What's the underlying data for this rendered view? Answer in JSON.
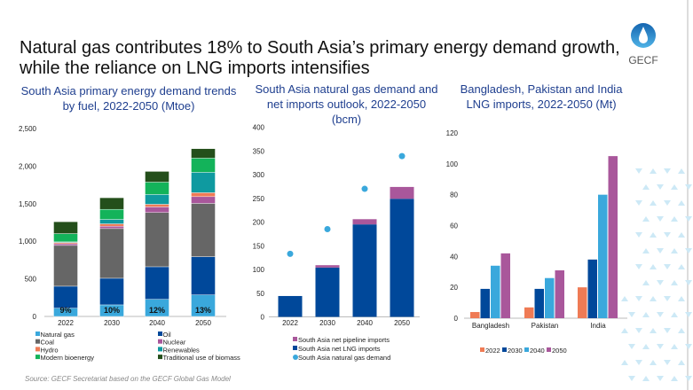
{
  "title": "Natural gas contributes 18% to South Asia’s primary energy demand growth, while the reliance on LNG imports intensifies",
  "logo": {
    "text": "GECF",
    "color": "#1e6fb8"
  },
  "source": "Source: GECF Secretariat based on the GECF Global Gas Model",
  "chart_data": [
    {
      "type": "bar",
      "stacked": true,
      "title": "South Asia primary energy demand trends by fuel, 2022-2050 (Mtoe)",
      "categories": [
        "2022",
        "2030",
        "2040",
        "2050"
      ],
      "ylim": [
        0,
        2500
      ],
      "yticks": [
        "0",
        "500",
        "1,000",
        "1,500",
        "2,000",
        "2,500"
      ],
      "ytick_values": [
        0,
        500,
        1000,
        1500,
        2000,
        2500
      ],
      "grid": false,
      "legend": "bottom",
      "data_labels": [
        "9%",
        "10%",
        "12%",
        "13%"
      ],
      "series": [
        {
          "name": "Natural gas",
          "color": "#3aa8dc",
          "values": [
            110,
            154,
            228,
            287
          ]
        },
        {
          "name": "Oil",
          "color": "#00489a",
          "values": [
            292,
            354,
            433,
            508
          ]
        },
        {
          "name": "Coal",
          "color": "#666666",
          "values": [
            543,
            661,
            721,
            709
          ]
        },
        {
          "name": "Nuclear",
          "color": "#a9579b",
          "values": [
            23,
            32,
            75,
            90
          ]
        },
        {
          "name": "Hydro",
          "color": "#ef7b55",
          "values": [
            16,
            31,
            35,
            52
          ]
        },
        {
          "name": "Renewables",
          "color": "#0f9aa0",
          "values": [
            8,
            59,
            130,
            271
          ]
        },
        {
          "name": "Modern bioenergy",
          "color": "#13b35a",
          "values": [
            110,
            134,
            165,
            189
          ]
        },
        {
          "name": "Traditional use of biomass",
          "color": "#244f1b",
          "values": [
            158,
            154,
            142,
            126
          ]
        }
      ]
    },
    {
      "type": "bar",
      "stacked": true,
      "title": "South Asia natural gas demand and net imports outlook, 2022-2050 (bcm)",
      "categories": [
        "2022",
        "2030",
        "2040",
        "2050"
      ],
      "ylim": [
        0,
        400
      ],
      "yticks": [
        "0",
        "50",
        "100",
        "150",
        "200",
        "250",
        "300",
        "350",
        "400"
      ],
      "ytick_values": [
        0,
        50,
        100,
        150,
        200,
        250,
        300,
        350,
        400
      ],
      "grid": false,
      "legend": "bottom",
      "series": [
        {
          "name": "South Asia net LNG imports",
          "color": "#00489a",
          "values": [
            44,
            104,
            195,
            249
          ]
        },
        {
          "name": "South Asia net pipeline imports",
          "color": "#a9579b",
          "values": [
            0,
            5,
            11,
            25
          ]
        }
      ],
      "markers": {
        "name": "South Asia natural gas demand",
        "color": "#3aa8dc",
        "values": [
          133,
          185,
          270,
          339
        ]
      },
      "legend_order": [
        "South Asia net pipeline imports",
        "South Asia net LNG imports",
        "South Asia natural gas demand"
      ]
    },
    {
      "type": "bar",
      "stacked": false,
      "title": "Bangladesh, Pakistan and India LNG imports, 2022-2050 (Mt)",
      "categories": [
        "Bangladesh",
        "Pakistan",
        "India"
      ],
      "ylim": [
        0,
        120
      ],
      "yticks": [
        "0",
        "20",
        "40",
        "60",
        "80",
        "100",
        "120"
      ],
      "ytick_values": [
        0,
        20,
        40,
        60,
        80,
        100,
        120
      ],
      "grid": false,
      "legend": "bottom",
      "series": [
        {
          "name": "2022",
          "color": "#ef7b55",
          "values": [
            4,
            7,
            20
          ]
        },
        {
          "name": "2030",
          "color": "#00489a",
          "values": [
            19,
            19,
            38
          ]
        },
        {
          "name": "2040",
          "color": "#3aa8dc",
          "values": [
            34,
            26,
            80
          ]
        },
        {
          "name": "2050",
          "color": "#a9579b",
          "values": [
            42,
            31,
            105
          ]
        }
      ]
    }
  ]
}
